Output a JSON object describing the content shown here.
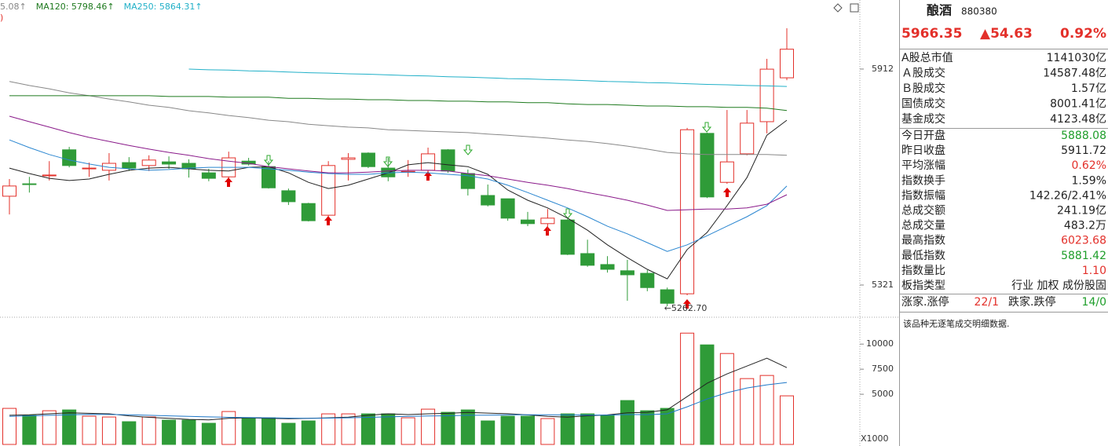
{
  "chart_data": [
    {
      "type": "candlestick",
      "open": [
        5564,
        5598,
        5620,
        5691,
        5639,
        5635,
        5656,
        5648,
        5658,
        5654,
        5628,
        5617,
        5660,
        5645,
        5579,
        5544,
        5512,
        5665,
        5682,
        5641,
        5630,
        5635,
        5691,
        5626,
        5566,
        5557,
        5499,
        5489,
        5499,
        5407,
        5377,
        5360,
        5353,
        5308,
        5297,
        5736,
        5602,
        5680,
        5768,
        5888.08
      ],
      "high": [
        5611,
        5617,
        5660,
        5699,
        5656,
        5682,
        5671,
        5676,
        5673,
        5665,
        5639,
        5686,
        5669,
        5660,
        5585,
        5546,
        5660,
        5682,
        5684,
        5669,
        5663,
        5697,
        5693,
        5637,
        5596,
        5557,
        5521,
        5529,
        5502,
        5445,
        5400,
        5390,
        5362,
        5314,
        5751,
        5738,
        5800,
        5800,
        5940,
        6023.68
      ],
      "low": [
        5514,
        5574,
        5607,
        5643,
        5617,
        5607,
        5633,
        5633,
        5639,
        5615,
        5605,
        5613,
        5648,
        5585,
        5540,
        5495,
        5508,
        5607,
        5641,
        5605,
        5617,
        5628,
        5628,
        5566,
        5536,
        5497,
        5482,
        5463,
        5403,
        5371,
        5355,
        5278,
        5304,
        5262.7,
        5293,
        5559,
        5598,
        5676,
        5736,
        5881.42
      ],
      "close": [
        5592,
        5596,
        5622,
        5648,
        5641,
        5654,
        5641,
        5663,
        5652,
        5639,
        5613,
        5669,
        5652,
        5587,
        5549,
        5497,
        5648,
        5669,
        5645,
        5617,
        5632,
        5680,
        5633,
        5585,
        5540,
        5504,
        5489,
        5504,
        5405,
        5375,
        5364,
        5349,
        5314,
        5271,
        5746,
        5562,
        5658,
        5764,
        5911.72,
        5966.35
      ],
      "up_color": "#e3302a",
      "down_color": "#2f9b38",
      "ylim": [
        5235,
        6101
      ],
      "yticks": [
        5912,
        5321
      ],
      "low_annotation": "←5262.70",
      "series": [
        {
          "color": "#222222",
          "values": [
            5641,
            5626,
            5613,
            5607,
            5611,
            5624,
            5635,
            5641,
            5643,
            5639,
            5635,
            5633,
            5643,
            5645,
            5628,
            5602,
            5585,
            5594,
            5611,
            5628,
            5650,
            5656,
            5650,
            5645,
            5624,
            5581,
            5553,
            5532,
            5504,
            5471,
            5431,
            5396,
            5364,
            5338,
            5418,
            5465,
            5538,
            5615,
            5731,
            5772
          ]
        },
        {
          "color": "#2a86d0",
          "values": [
            5718,
            5697,
            5678,
            5663,
            5652,
            5643,
            5639,
            5635,
            5637,
            5641,
            5643,
            5643,
            5643,
            5639,
            5635,
            5630,
            5626,
            5624,
            5624,
            5628,
            5630,
            5628,
            5624,
            5620,
            5611,
            5594,
            5574,
            5553,
            5532,
            5508,
            5482,
            5461,
            5437,
            5413,
            5431,
            5456,
            5482,
            5508,
            5538,
            5592
          ]
        },
        {
          "color": "#8a1a8a",
          "values": [
            5783,
            5768,
            5753,
            5738,
            5725,
            5714,
            5703,
            5693,
            5684,
            5676,
            5667,
            5660,
            5654,
            5645,
            5639,
            5633,
            5628,
            5628,
            5630,
            5633,
            5635,
            5635,
            5633,
            5626,
            5620,
            5611,
            5602,
            5594,
            5585,
            5574,
            5564,
            5553,
            5540,
            5525,
            5527,
            5529,
            5529,
            5532,
            5542,
            5568
          ]
        },
        {
          "name": "5.08↑",
          "color": "#888888",
          "values": [
            5878,
            5867,
            5858,
            5847,
            5839,
            5830,
            5822,
            5813,
            5807,
            5798,
            5792,
            5785,
            5779,
            5772,
            5768,
            5761,
            5757,
            5753,
            5751,
            5746,
            5744,
            5742,
            5740,
            5738,
            5734,
            5731,
            5727,
            5723,
            5718,
            5714,
            5708,
            5701,
            5693,
            5684,
            5680,
            5678,
            5678,
            5678,
            5678,
            5676
          ]
        },
        {
          "name": "MA120: 5798.46↑",
          "color": "#1f7a1f",
          "values": [
            5839,
            5839,
            5839,
            5839,
            5839,
            5839,
            5839,
            5839,
            5837,
            5837,
            5837,
            5835,
            5835,
            5835,
            5832,
            5832,
            5830,
            5830,
            5828,
            5828,
            5826,
            5826,
            5824,
            5824,
            5822,
            5822,
            5820,
            5820,
            5817,
            5815,
            5815,
            5813,
            5811,
            5811,
            5809,
            5809,
            5807,
            5807,
            5805,
            5798.46
          ]
        },
        {
          "name": "MA250: 5864.31↑",
          "color": "#21b0c8",
          "values": [
            null,
            null,
            null,
            null,
            null,
            null,
            null,
            null,
            null,
            5912,
            5910,
            5909,
            5907,
            5906,
            5904,
            5902,
            5901,
            5899,
            5898,
            5896,
            5894,
            5893,
            5891,
            5890,
            5888,
            5886,
            5885,
            5883,
            5882,
            5880,
            5878,
            5877,
            5875,
            5874,
            5872,
            5870,
            5869,
            5867,
            5866,
            5864.31
          ]
        }
      ]
    },
    {
      "type": "bar",
      "values": [
        3594,
        2891,
        3359,
        3438,
        2813,
        2734,
        2266,
        2734,
        2422,
        2422,
        2109,
        3281,
        2656,
        2656,
        2109,
        2344,
        3047,
        3047,
        3047,
        3047,
        2656,
        3516,
        3203,
        3438,
        2344,
        2813,
        2813,
        2578,
        3047,
        3047,
        2891,
        4375,
        3359,
        3594,
        11094,
        9922,
        9063,
        6563,
        6875,
        4844
      ],
      "ylim": [
        0,
        12600
      ],
      "yticks": [
        10000,
        7500,
        5000
      ],
      "unit_label": "X1000",
      "series": [
        {
          "color": "#222222",
          "values": [
            2900,
            2950,
            3050,
            3150,
            3100,
            3050,
            2850,
            2700,
            2600,
            2500,
            2450,
            2600,
            2650,
            2600,
            2560,
            2600,
            2650,
            2720,
            2900,
            3050,
            2970,
            3050,
            3100,
            3190,
            3120,
            3060,
            2940,
            2800,
            2720,
            2860,
            2940,
            3150,
            3200,
            3450,
            4766,
            6094,
            7031,
            7813,
            8594,
            7656
          ]
        },
        {
          "color": "#1f78c8",
          "values": [
            2800,
            2850,
            2900,
            2950,
            3000,
            2980,
            2950,
            2900,
            2850,
            2800,
            2750,
            2700,
            2680,
            2650,
            2620,
            2600,
            2620,
            2650,
            2700,
            2750,
            2800,
            2830,
            2860,
            2900,
            2920,
            2950,
            2960,
            2950,
            2940,
            2930,
            2920,
            2980,
            2969,
            3050,
            3750,
            4531,
            5156,
            5625,
            5938,
            6172
          ]
        }
      ]
    }
  ],
  "quote_panel": {
    "name": "酿酒",
    "code": "880380",
    "price": "5966.35",
    "change": "▲54.63",
    "change_pct": "0.92%",
    "rows": [
      {
        "label": "A股总市值",
        "value": "1141030亿"
      },
      {
        "label": "Ａ股成交",
        "value": "14587.48亿"
      },
      {
        "label": "Ｂ股成交",
        "value": "1.57亿"
      },
      {
        "label": "国债成交",
        "value": "8001.41亿"
      },
      {
        "label": "基金成交",
        "value": "4123.48亿"
      },
      {
        "label": "今日开盘",
        "value": "5888.08",
        "color": "#1e9e2a"
      },
      {
        "label": "昨日收盘",
        "value": "5911.72"
      },
      {
        "label": "平均涨幅",
        "value": "0.62%",
        "color": "#e3302a"
      },
      {
        "label": "指数换手",
        "value": "1.59%"
      },
      {
        "label": "指数振幅",
        "value": "142.26/2.41%"
      },
      {
        "label": "总成交额",
        "value": "241.19亿"
      },
      {
        "label": "总成交量",
        "value": "483.2万"
      },
      {
        "label": "最高指数",
        "value": "6023.68",
        "color": "#e3302a"
      },
      {
        "label": "最低指数",
        "value": "5881.42",
        "color": "#1e9e2a"
      },
      {
        "label": "指数量比",
        "value": "1.10",
        "color": "#e3302a"
      },
      {
        "label": "板指类型",
        "value": "行业 加权 成份股固"
      }
    ],
    "breadth": [
      "涨家.涨停",
      "22/1",
      "跌家.跌停",
      "14/0"
    ],
    "note": "该品种无逐笔成交明细数据."
  }
}
